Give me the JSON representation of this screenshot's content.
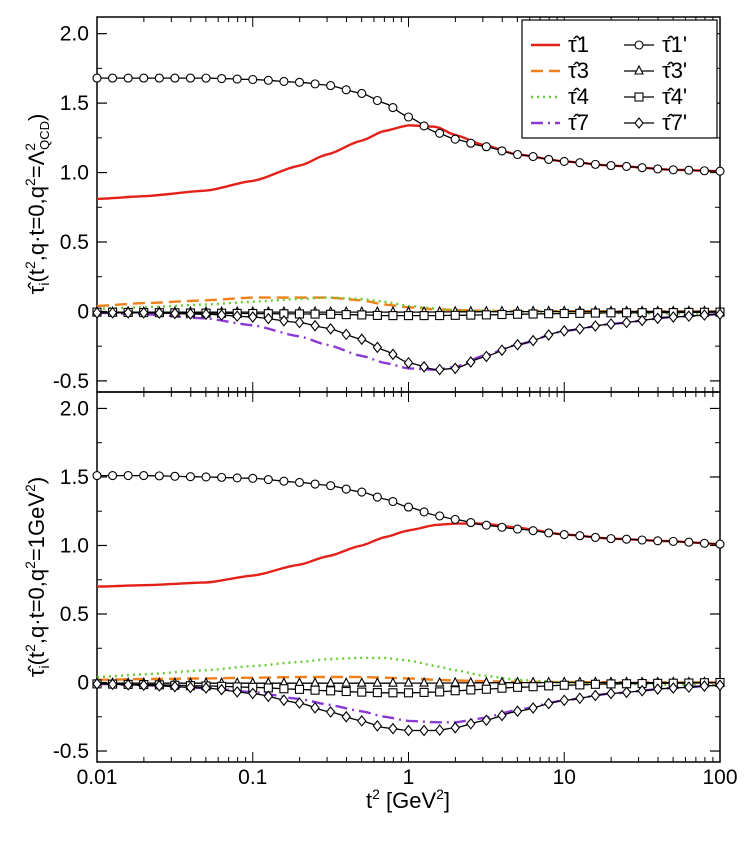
{
  "chart_data": [
    {
      "type": "line",
      "panel": "top",
      "ylabel": "τ̂ᵢ(t², q·t=0, q²=Λ²QCD)",
      "ylim": [
        -0.58,
        2.12
      ],
      "yticks": [
        -0.5,
        0,
        0.5,
        1.0,
        1.5,
        2.0
      ],
      "ytick_labels": [
        "-0.5",
        "0",
        "0.5",
        "1.0",
        "1.5",
        "2.0"
      ],
      "x": [
        0.01,
        0.02,
        0.05,
        0.1,
        0.2,
        0.3,
        0.5,
        0.7,
        1.0,
        1.5,
        2.0,
        3.0,
        5.0,
        10,
        20,
        50,
        100
      ],
      "series": [
        {
          "name": "τ̂1",
          "color": "#e32119",
          "style": "solid",
          "marker": "none",
          "values": [
            0.81,
            0.83,
            0.87,
            0.94,
            1.05,
            1.13,
            1.23,
            1.3,
            1.34,
            1.33,
            1.27,
            1.2,
            1.13,
            1.08,
            1.05,
            1.02,
            1.01
          ]
        },
        {
          "name": "τ̂3",
          "color": "#f07f1a",
          "style": "dashed",
          "marker": "none",
          "values": [
            0.04,
            0.06,
            0.08,
            0.1,
            0.1,
            0.1,
            0.08,
            0.05,
            0.03,
            0.015,
            0.01,
            0.005,
            0.003,
            0.002,
            0.001,
            0.001,
            0.0
          ]
        },
        {
          "name": "τ̂4",
          "color": "#66cc33",
          "style": "dotted",
          "marker": "none",
          "values": [
            0.02,
            0.03,
            0.05,
            0.07,
            0.09,
            0.1,
            0.09,
            0.07,
            0.04,
            0.02,
            0.01,
            0.005,
            0.0,
            -0.005,
            -0.01,
            -0.015,
            -0.02
          ]
        },
        {
          "name": "τ̂7",
          "color": "#8a3ad4",
          "style": "dashdot",
          "marker": "none",
          "values": [
            -0.01,
            -0.02,
            -0.05,
            -0.1,
            -0.18,
            -0.24,
            -0.32,
            -0.37,
            -0.41,
            -0.42,
            -0.4,
            -0.32,
            -0.24,
            -0.14,
            -0.09,
            -0.04,
            -0.02
          ]
        },
        {
          "name": "τ̂1'",
          "color": "#000000",
          "style": "solid",
          "marker": "circle",
          "values": [
            1.68,
            1.68,
            1.68,
            1.67,
            1.65,
            1.63,
            1.57,
            1.5,
            1.4,
            1.29,
            1.24,
            1.19,
            1.13,
            1.08,
            1.05,
            1.02,
            1.01
          ]
        },
        {
          "name": "τ̂3'",
          "color": "#000000",
          "style": "solid",
          "marker": "triangle",
          "values": [
            -0.005,
            -0.005,
            -0.005,
            -0.005,
            -0.005,
            -0.005,
            -0.005,
            -0.005,
            -0.005,
            -0.004,
            -0.003,
            -0.002,
            -0.001,
            0.0,
            0.0,
            0.0,
            0.0
          ]
        },
        {
          "name": "τ̂4'",
          "color": "#000000",
          "style": "solid",
          "marker": "square",
          "values": [
            -0.005,
            -0.008,
            -0.012,
            -0.015,
            -0.018,
            -0.02,
            -0.025,
            -0.03,
            -0.03,
            -0.03,
            -0.028,
            -0.025,
            -0.02,
            -0.015,
            -0.01,
            -0.008,
            -0.005
          ]
        },
        {
          "name": "τ̂7'",
          "color": "#000000",
          "style": "solid",
          "marker": "diamond",
          "values": [
            -0.01,
            -0.01,
            -0.02,
            -0.04,
            -0.08,
            -0.12,
            -0.2,
            -0.28,
            -0.37,
            -0.42,
            -0.41,
            -0.33,
            -0.24,
            -0.14,
            -0.09,
            -0.04,
            -0.02
          ]
        }
      ]
    },
    {
      "type": "line",
      "panel": "bottom",
      "ylabel": "τ̂ᵢ(t², q·t=0, q²=1GeV²)",
      "ylim": [
        -0.58,
        2.12
      ],
      "yticks": [
        -0.5,
        0,
        0.5,
        1.0,
        1.5,
        2.0
      ],
      "ytick_labels": [
        "-0.5",
        "0",
        "0.5",
        "1.0",
        "1.5",
        "2.0"
      ],
      "x": [
        0.01,
        0.02,
        0.05,
        0.1,
        0.2,
        0.3,
        0.5,
        0.7,
        1.0,
        1.5,
        2.0,
        3.0,
        5.0,
        10,
        20,
        50,
        100
      ],
      "series": [
        {
          "name": "τ̂1",
          "color": "#e32119",
          "style": "solid",
          "marker": "none",
          "values": [
            0.7,
            0.71,
            0.73,
            0.78,
            0.86,
            0.92,
            1.0,
            1.06,
            1.11,
            1.15,
            1.16,
            1.16,
            1.13,
            1.08,
            1.05,
            1.03,
            1.01
          ]
        },
        {
          "name": "τ̂3",
          "color": "#f07f1a",
          "style": "dashed",
          "marker": "none",
          "values": [
            0.02,
            0.025,
            0.03,
            0.035,
            0.04,
            0.04,
            0.04,
            0.035,
            0.03,
            0.02,
            0.015,
            0.01,
            0.005,
            0.003,
            0.002,
            0.001,
            0.0
          ]
        },
        {
          "name": "τ̂4",
          "color": "#66cc33",
          "style": "dotted",
          "marker": "none",
          "values": [
            0.04,
            0.06,
            0.09,
            0.12,
            0.15,
            0.17,
            0.18,
            0.18,
            0.16,
            0.12,
            0.09,
            0.05,
            0.02,
            0.0,
            -0.01,
            -0.015,
            -0.02
          ]
        },
        {
          "name": "τ̂7",
          "color": "#8a3ad4",
          "style": "dashdot",
          "marker": "none",
          "values": [
            -0.01,
            -0.02,
            -0.04,
            -0.07,
            -0.12,
            -0.16,
            -0.21,
            -0.25,
            -0.28,
            -0.29,
            -0.29,
            -0.26,
            -0.2,
            -0.13,
            -0.08,
            -0.04,
            -0.02
          ]
        },
        {
          "name": "τ̂1'",
          "color": "#000000",
          "style": "solid",
          "marker": "circle",
          "values": [
            1.51,
            1.51,
            1.5,
            1.49,
            1.46,
            1.44,
            1.39,
            1.34,
            1.28,
            1.22,
            1.19,
            1.15,
            1.12,
            1.08,
            1.05,
            1.03,
            1.01
          ]
        },
        {
          "name": "τ̂3'",
          "color": "#000000",
          "style": "solid",
          "marker": "triangle",
          "values": [
            -0.005,
            -0.005,
            -0.005,
            -0.005,
            -0.005,
            -0.005,
            -0.005,
            -0.005,
            -0.004,
            -0.004,
            -0.003,
            -0.002,
            -0.001,
            0.0,
            0.0,
            0.0,
            0.0
          ]
        },
        {
          "name": "τ̂4'",
          "color": "#000000",
          "style": "solid",
          "marker": "square",
          "values": [
            -0.01,
            -0.015,
            -0.025,
            -0.035,
            -0.05,
            -0.06,
            -0.07,
            -0.075,
            -0.075,
            -0.07,
            -0.06,
            -0.05,
            -0.035,
            -0.02,
            -0.01,
            -0.005,
            0.0
          ]
        },
        {
          "name": "τ̂7'",
          "color": "#000000",
          "style": "solid",
          "marker": "diamond",
          "values": [
            -0.01,
            -0.02,
            -0.04,
            -0.08,
            -0.15,
            -0.21,
            -0.28,
            -0.33,
            -0.35,
            -0.35,
            -0.33,
            -0.28,
            -0.21,
            -0.13,
            -0.08,
            -0.04,
            -0.02
          ]
        }
      ]
    }
  ],
  "x_axis": {
    "label": "t² [GeV²]",
    "scale": "log",
    "xlim": [
      0.01,
      100
    ],
    "ticks": [
      0.01,
      0.1,
      1,
      10,
      100
    ],
    "tick_labels": [
      "0.01",
      "0.1",
      "1",
      "10",
      "100"
    ]
  },
  "legend": {
    "placement": "top-right",
    "entries_left": [
      "τ̂1",
      "τ̂3",
      "τ̂4",
      "τ̂7"
    ],
    "entries_right": [
      "τ̂1'",
      "τ̂3'",
      "τ̂4'",
      "τ̂7'"
    ]
  }
}
